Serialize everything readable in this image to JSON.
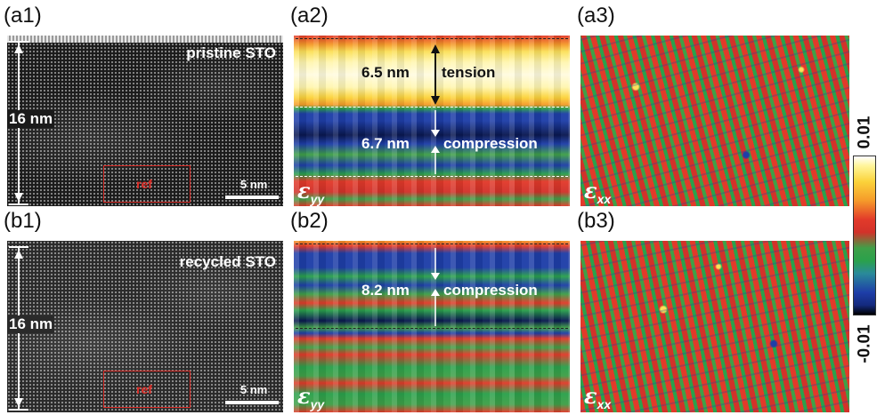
{
  "panels": {
    "a1": {
      "label": "(a1)",
      "title": "pristine STO",
      "thickness": "16 nm",
      "ref": "ref",
      "scale": "5 nm"
    },
    "a2": {
      "label": "(a2)",
      "top_value": "6.5 nm",
      "top_text": "tension",
      "mid_value": "6.7 nm",
      "mid_text": "compression",
      "eps_main": "ε",
      "eps_sub": "yy"
    },
    "a3": {
      "label": "(a3)",
      "eps_main": "ε",
      "eps_sub": "xx"
    },
    "b1": {
      "label": "(b1)",
      "title": "recycled STO",
      "thickness": "16 nm",
      "ref": "ref",
      "scale": "5 nm"
    },
    "b2": {
      "label": "(b2)",
      "mid_value": "8.2 nm",
      "mid_text": "compression",
      "eps_main": "ε",
      "eps_sub": "yy"
    },
    "b3": {
      "label": "(b3)",
      "eps_main": "ε",
      "eps_sub": "xx"
    }
  },
  "colorbar": {
    "max": "0.01",
    "min": "-0.01",
    "colors": [
      "#ffffff",
      "#fff59a",
      "#fbd23a",
      "#f59a2a",
      "#e23a2a",
      "#3fa048",
      "#2a8a9a",
      "#1e3ea8",
      "#000000"
    ]
  },
  "colors": {
    "tension": "#fbe05a",
    "compression": "#2a47a6",
    "ref_box": "#d82a25"
  }
}
